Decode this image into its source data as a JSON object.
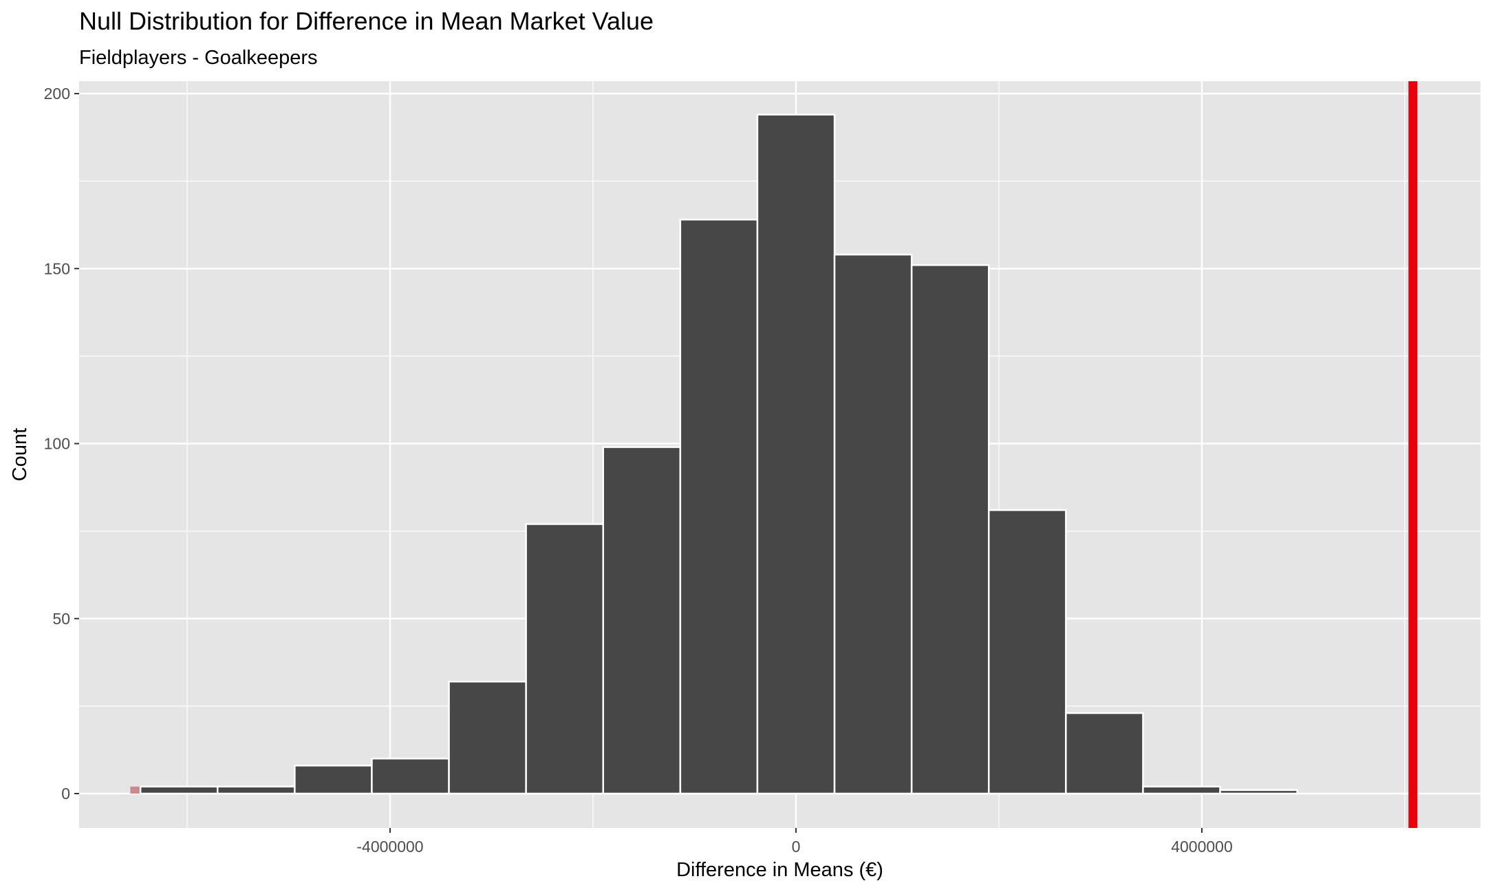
{
  "chart_data": {
    "type": "bar",
    "title": "Null Distribution for Difference in Mean Market Value",
    "subtitle": "Fieldplayers - Goalkeepers",
    "xlabel": "Difference in Means (€)",
    "ylabel": "Count",
    "xlim": [
      -7100000,
      6700000
    ],
    "ylim": [
      -10,
      205
    ],
    "x_ticks": [
      {
        "value": -4000000,
        "label": "-4000000"
      },
      {
        "value": 0,
        "label": "0"
      },
      {
        "value": 4000000,
        "label": "4000000"
      }
    ],
    "x_minor": [
      -6000000,
      -2000000,
      2000000,
      6000000
    ],
    "y_ticks": [
      {
        "value": 0,
        "label": "0"
      },
      {
        "value": 50,
        "label": "50"
      },
      {
        "value": 100,
        "label": "100"
      },
      {
        "value": 150,
        "label": "150"
      },
      {
        "value": 200,
        "label": "200"
      }
    ],
    "y_minor": [
      25,
      75,
      125,
      175
    ],
    "bins": [
      {
        "x0": -6460000,
        "x1": -5700000,
        "count": 2
      },
      {
        "x0": -5700000,
        "x1": -4940000,
        "count": 2
      },
      {
        "x0": -4940000,
        "x1": -4180000,
        "count": 8
      },
      {
        "x0": -4180000,
        "x1": -3420000,
        "count": 10
      },
      {
        "x0": -3420000,
        "x1": -2660000,
        "count": 32
      },
      {
        "x0": -2660000,
        "x1": -1900000,
        "count": 77
      },
      {
        "x0": -1900000,
        "x1": -1140000,
        "count": 99
      },
      {
        "x0": -1140000,
        "x1": -380000,
        "count": 164
      },
      {
        "x0": -380000,
        "x1": 380000,
        "count": 194
      },
      {
        "x0": 380000,
        "x1": 1140000,
        "count": 154
      },
      {
        "x0": 1140000,
        "x1": 1900000,
        "count": 151
      },
      {
        "x0": 1900000,
        "x1": 2660000,
        "count": 81
      },
      {
        "x0": 2660000,
        "x1": 3420000,
        "count": 23
      },
      {
        "x0": 3420000,
        "x1": 4180000,
        "count": 2
      },
      {
        "x0": 4180000,
        "x1": 4940000,
        "count": 1
      }
    ],
    "shaded_tail": {
      "x0": -6560000,
      "x1": -6460000,
      "count": 2
    },
    "observed_stat": 6080000,
    "colors": {
      "panel": "#e5e5e5",
      "grid": "#ffffff",
      "bar_fill": "#474747",
      "bar_outline": "#ffffff",
      "observed_line": "#e8000b",
      "tail_shade": "#c98a8f"
    },
    "grid": true,
    "legend": "none"
  }
}
